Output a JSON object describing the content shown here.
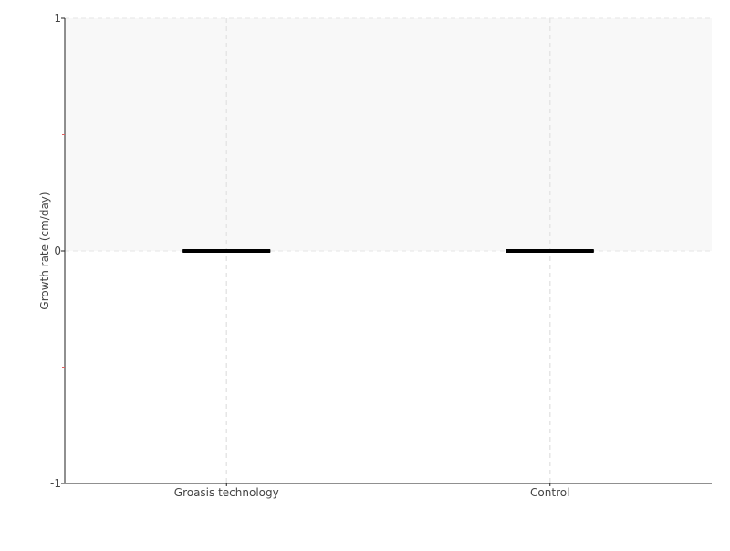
{
  "chart_data": {
    "type": "box",
    "title": "",
    "xlabel": "",
    "ylabel": "Growth rate (cm/day)",
    "categories": [
      "Groasis technology",
      "Control"
    ],
    "series": [
      {
        "values": [
          {
            "min": 0,
            "q1": 0,
            "median": 0,
            "q3": 0,
            "max": 0
          },
          {
            "min": 0,
            "q1": 0,
            "median": 0,
            "q3": 0,
            "max": 0
          }
        ]
      }
    ],
    "ylim": [
      -1,
      1
    ],
    "yticks": [
      -1,
      0,
      1
    ],
    "yminor_ticks": [
      -0.5,
      0.5
    ],
    "grid": true,
    "colors": {
      "box": "#000000",
      "positive_band": "#f8f8f8",
      "grid": "#e6e6e6",
      "minor_tick": "#e06060"
    }
  }
}
